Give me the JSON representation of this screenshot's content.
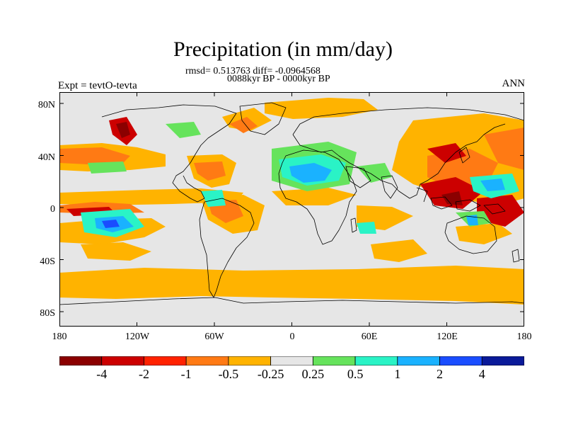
{
  "title": "Precipitation (in mm/day)",
  "stats": "rmsd= 0.513763 diff= -0.0964568",
  "period": "0088kyr BP - 0000kyr BP",
  "experiment": "Expt = tevtO-tevta",
  "season": "ANN",
  "lat_labels": [
    "80N",
    "40N",
    "0",
    "40S",
    "80S"
  ],
  "lon_labels": [
    "180",
    "120W",
    "60W",
    "0",
    "60E",
    "120E",
    "180"
  ],
  "colorbar": {
    "labels": [
      "-4",
      "-2",
      "-1",
      "-0.5",
      "-0.25",
      "0.25",
      "0.5",
      "1",
      "2",
      "4"
    ],
    "colors": [
      "#8b0000",
      "#cc0000",
      "#ff2200",
      "#ff7a14",
      "#ffb300",
      "#e6e6e6",
      "#66e35c",
      "#2af3c6",
      "#1ab2ff",
      "#1a4dff",
      "#0a1a99"
    ]
  },
  "map_colors": {
    "neutral": "#e6e6e6",
    "coastline": "#000000"
  }
}
